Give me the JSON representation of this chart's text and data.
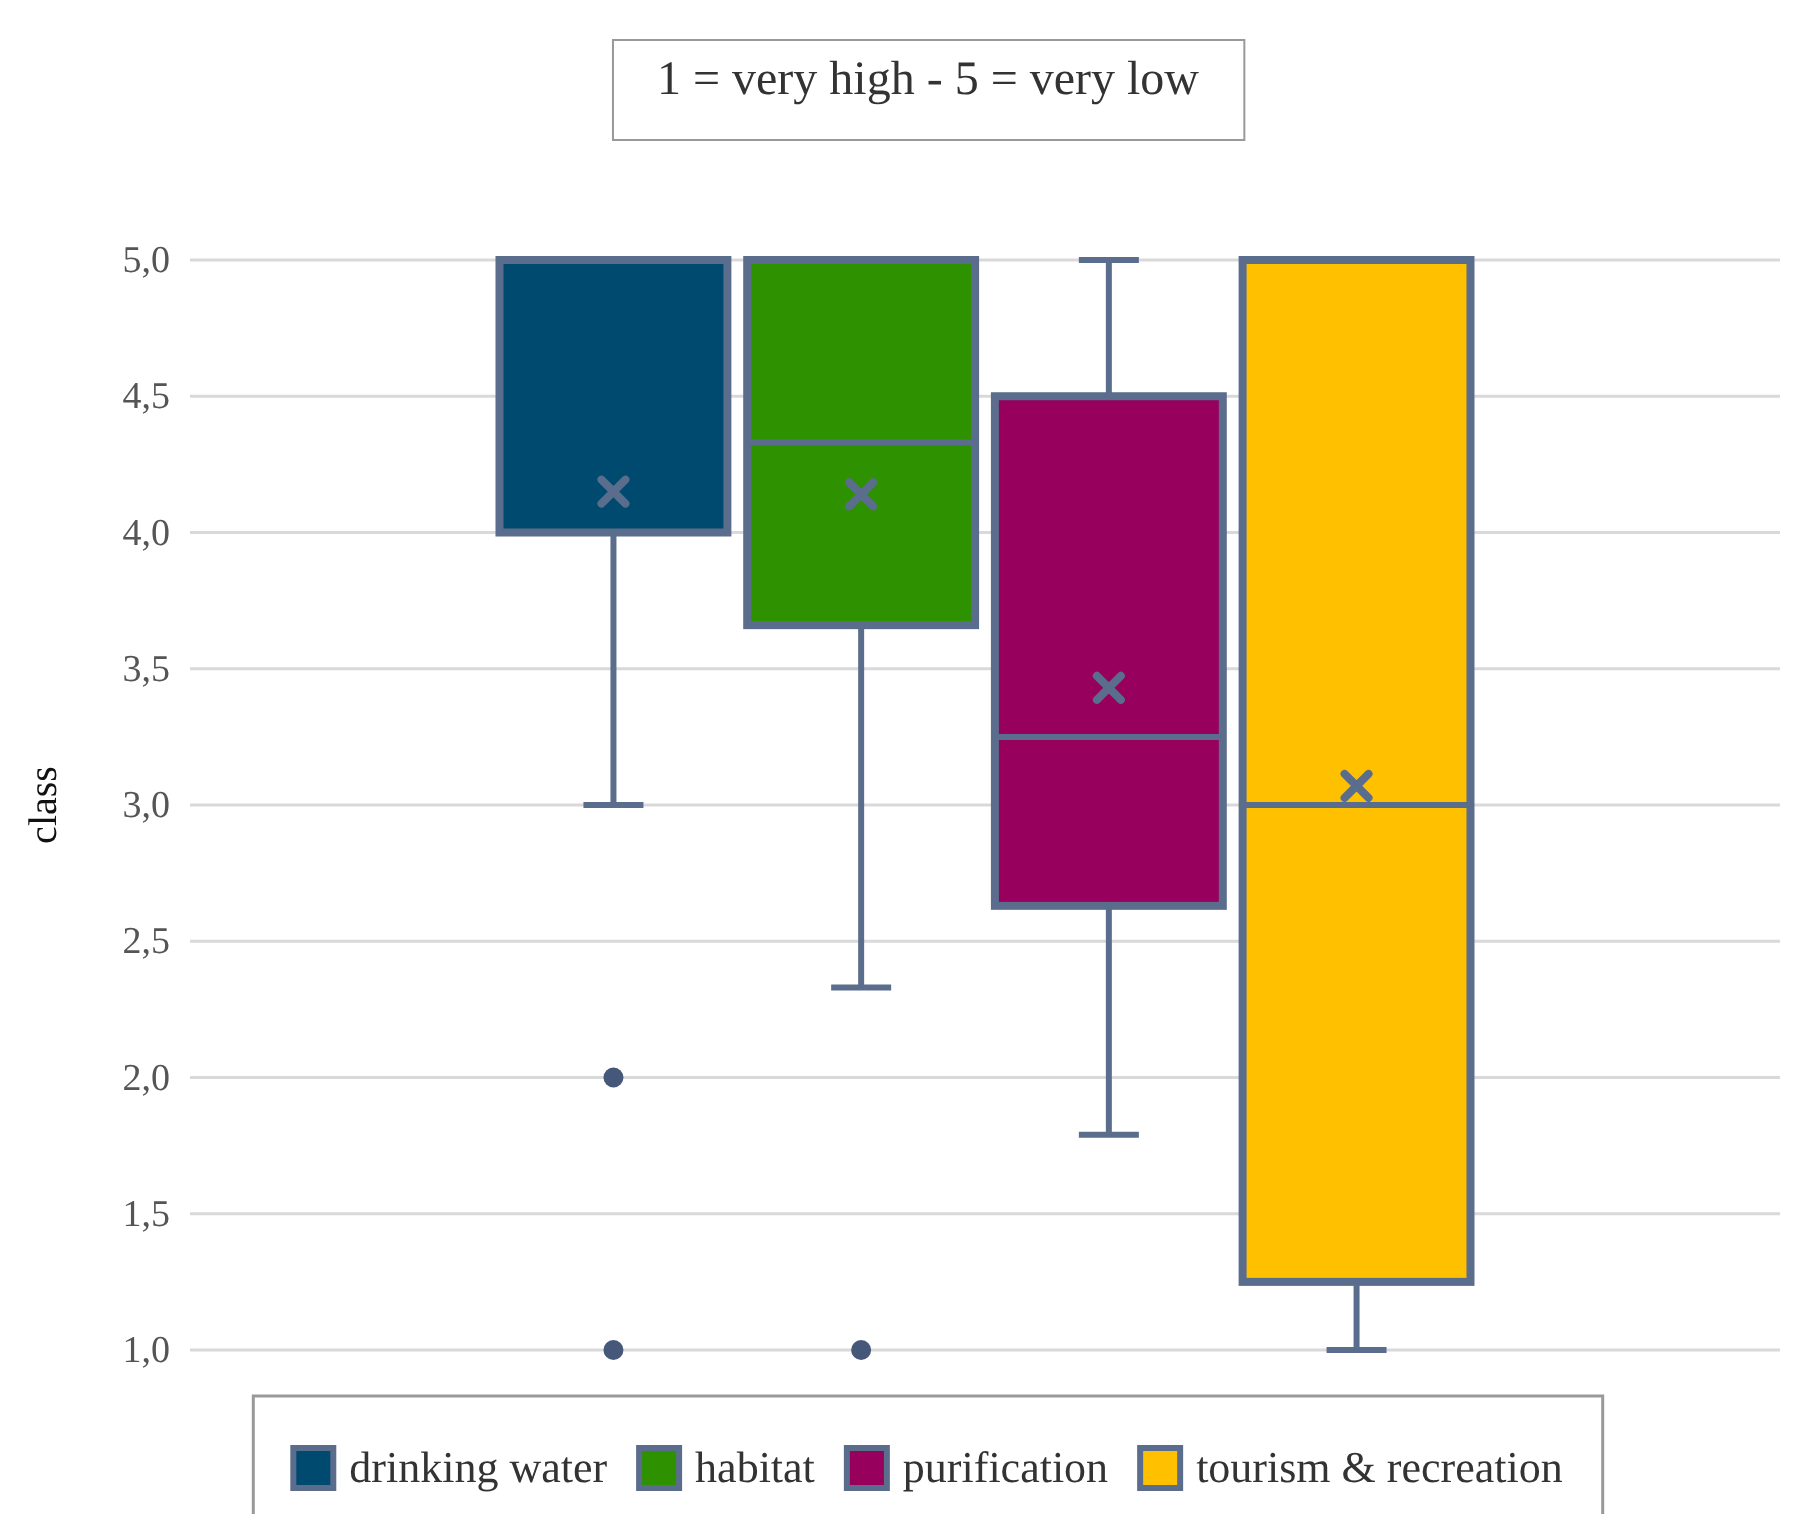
{
  "chart_data": {
    "type": "box",
    "title": "1 = very high - 5 = very low",
    "ylabel": "class",
    "categories": [
      null
    ],
    "series": [
      {
        "name": "drinking water",
        "color": "#004a6f",
        "boxes": [
          {
            "low": 3.0,
            "q1": 4.0,
            "median": 5.0,
            "q3": 5.0,
            "high": 5.0,
            "mean": 4.15,
            "outliers": [
              2.0,
              1.0
            ]
          }
        ]
      },
      {
        "name": "habitat",
        "color": "#2e9100",
        "boxes": [
          {
            "low": 2.33,
            "q1": 3.66,
            "median": 4.33,
            "q3": 5.0,
            "high": 5.0,
            "mean": 4.14,
            "outliers": [
              1.0
            ]
          }
        ]
      },
      {
        "name": "purification",
        "color": "#97005c",
        "boxes": [
          {
            "low": 1.79,
            "q1": 2.63,
            "median": 3.25,
            "q3": 4.5,
            "high": 5.0,
            "mean": 3.43
          }
        ]
      },
      {
        "name": "tourism & recreation",
        "color": "#ffc000",
        "boxes": [
          {
            "low": 1.0,
            "q1": 1.25,
            "median": 3.0,
            "q3": 5.0,
            "high": 5.0,
            "mean": 3.07
          }
        ]
      }
    ],
    "ylim": [
      1,
      5
    ],
    "yticks": [
      {
        "value": 1,
        "label": "1,0"
      },
      {
        "value": 1.5,
        "label": "1,5"
      },
      {
        "value": 2,
        "label": "2,0"
      },
      {
        "value": 2.5,
        "label": "2,5"
      },
      {
        "value": 3,
        "label": "3,0"
      },
      {
        "value": 3.5,
        "label": "3,5"
      },
      {
        "value": 4,
        "label": "4,0"
      },
      {
        "value": 4.5,
        "label": "4,5"
      },
      {
        "value": 5,
        "label": "5,0"
      }
    ],
    "grid": "y",
    "legend": "bottom"
  }
}
